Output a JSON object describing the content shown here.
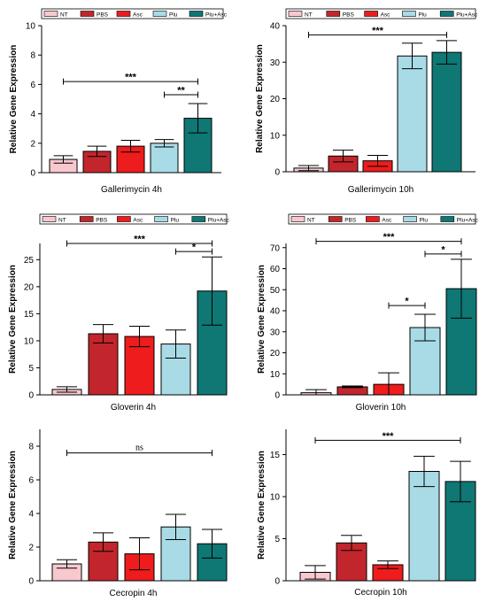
{
  "legend_labels": [
    "NT",
    "PBS",
    "Asc",
    "Plu",
    "Plu+Asc"
  ],
  "colors": [
    "#f8c8cf",
    "#c2262c",
    "#ee1c1c",
    "#a8dbe6",
    "#0f7774"
  ],
  "chart_data": [
    {
      "type": "bar",
      "categories": [
        "NT",
        "PBS",
        "Asc",
        "Plu",
        "Plu+Asc"
      ],
      "values": [
        0.9,
        1.45,
        1.8,
        2.0,
        3.7
      ],
      "errors": [
        0.25,
        0.35,
        0.4,
        0.25,
        1.0
      ],
      "ylabel": "Relative Gene Expression",
      "xlabel": "Gallerimycin 4h",
      "ylim": [
        0,
        10
      ],
      "yticks": [
        0,
        2,
        4,
        6,
        8,
        10
      ],
      "show_legend": true,
      "sig": [
        {
          "from": 0,
          "to": 4,
          "y": 6.2,
          "label": "***"
        },
        {
          "from": 3,
          "to": 4,
          "y": 5.3,
          "label": "**"
        }
      ]
    },
    {
      "type": "bar",
      "categories": [
        "NT",
        "PBS",
        "Asc",
        "Plu",
        "Plu+Asc"
      ],
      "values": [
        1.0,
        4.3,
        3.0,
        31.7,
        32.7
      ],
      "errors": [
        0.7,
        1.6,
        1.5,
        3.5,
        3.2
      ],
      "ylabel": "Relative Gene Expression",
      "xlabel": "Gallerimycin 10h",
      "ylim": [
        0,
        40
      ],
      "yticks": [
        0,
        10,
        20,
        30,
        40
      ],
      "show_legend": true,
      "sig": [
        {
          "from": 0,
          "to": 4,
          "y": 37.5,
          "label": "***"
        }
      ]
    },
    {
      "type": "bar",
      "categories": [
        "NT",
        "PBS",
        "Asc",
        "Plu",
        "Plu+Asc"
      ],
      "values": [
        1.0,
        11.3,
        10.8,
        9.4,
        19.2
      ],
      "errors": [
        0.5,
        1.7,
        1.9,
        2.6,
        6.3
      ],
      "ylabel": "Relative Gene Expression",
      "xlabel": "Gloverin 4h",
      "ylim": [
        0,
        28
      ],
      "yticks": [
        0,
        5,
        10,
        15,
        20,
        25
      ],
      "show_legend": true,
      "sig": [
        {
          "from": 0,
          "to": 4,
          "y": 28.0,
          "label": "***"
        },
        {
          "from": 3,
          "to": 4,
          "y": 26.5,
          "label": "*"
        }
      ]
    },
    {
      "type": "bar",
      "categories": [
        "NT",
        "PBS",
        "Asc",
        "Plu",
        "Plu+Asc"
      ],
      "values": [
        1.0,
        3.8,
        5.0,
        32.0,
        50.5
      ],
      "errors": [
        1.5,
        0.4,
        5.5,
        6.3,
        14.0
      ],
      "ylabel": "Relative Gene Expression",
      "xlabel": "Gloverin 10h",
      "ylim": [
        0,
        72
      ],
      "yticks": [
        0,
        10,
        20,
        30,
        40,
        50,
        60,
        70
      ],
      "show_legend": true,
      "sig": [
        {
          "from": 0,
          "to": 4,
          "y": 73.0,
          "label": "***"
        },
        {
          "from": 3,
          "to": 4,
          "y": 67.0,
          "label": "*"
        },
        {
          "from": 2,
          "to": 3,
          "y": 42.5,
          "label": "*"
        }
      ]
    },
    {
      "type": "bar",
      "categories": [
        "NT",
        "PBS",
        "Asc",
        "Plu",
        "Plu+Asc"
      ],
      "values": [
        1.0,
        2.3,
        1.6,
        3.2,
        2.2
      ],
      "errors": [
        0.25,
        0.55,
        0.95,
        0.75,
        0.85
      ],
      "ylabel": "Relative Gene Expression",
      "xlabel": "Cecropin 4h",
      "ylim": [
        0,
        9
      ],
      "yticks": [
        0,
        2,
        4,
        6,
        8
      ],
      "show_legend": false,
      "sig": [
        {
          "from": 0,
          "to": 4,
          "y": 7.6,
          "label": "ns"
        }
      ]
    },
    {
      "type": "bar",
      "categories": [
        "NT",
        "PBS",
        "Asc",
        "Plu",
        "Plu+Asc"
      ],
      "values": [
        1.0,
        4.5,
        1.9,
        13.0,
        11.8
      ],
      "errors": [
        0.8,
        0.9,
        0.45,
        1.8,
        2.4
      ],
      "ylabel": "Relative Gene Expression",
      "xlabel": "Cecropin 10h",
      "ylim": [
        0,
        18
      ],
      "yticks": [
        0,
        5,
        10,
        15
      ],
      "show_legend": false,
      "sig": [
        {
          "from": 0,
          "to": 4,
          "y": 16.7,
          "label": "***"
        }
      ]
    }
  ]
}
